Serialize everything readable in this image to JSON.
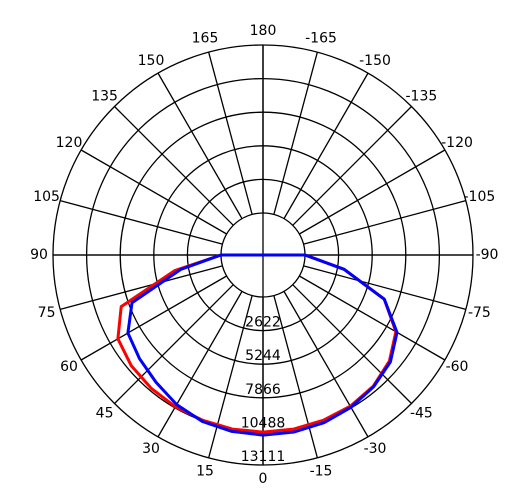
{
  "chart_data": {
    "type": "polar",
    "angle_unit": "degrees",
    "angle_labels": [
      "180",
      "165",
      "150",
      "135",
      "120",
      "105",
      "90",
      "75",
      "60",
      "45",
      "30",
      "15",
      "0",
      "-15",
      "-30",
      "-45",
      "-60",
      "-75",
      "-90",
      "-105",
      "-120",
      "-135",
      "-150",
      "-165"
    ],
    "angle_values": [
      180,
      165,
      150,
      135,
      120,
      105,
      90,
      75,
      60,
      45,
      30,
      15,
      0,
      -15,
      -30,
      -45,
      -60,
      -75,
      -90,
      -105,
      -120,
      -135,
      -150,
      -165
    ],
    "radial_labels": [
      "2622",
      "5244",
      "7866",
      "10488",
      "13111"
    ],
    "radial_values": [
      2622,
      5244,
      7866,
      10488,
      13111
    ],
    "r_max": 13111,
    "grid": true,
    "series": [
      {
        "color": "#ff0000",
        "angles": [
          -90,
          -80,
          -70,
          -60,
          -50,
          -40,
          -30,
          -20,
          -10,
          0,
          10,
          20,
          30,
          40,
          50,
          60,
          70,
          80,
          90
        ],
        "values": [
          0,
          3150,
          6800,
          8700,
          9600,
          10100,
          10350,
          10450,
          10520,
          10540,
          10520,
          10450,
          10400,
          10300,
          10150,
          9800,
          8500,
          3700,
          0
        ]
      },
      {
        "color": "#0000ff",
        "angles": [
          -90,
          -80,
          -70,
          -60,
          -50,
          -40,
          -30,
          -20,
          -10,
          0,
          10,
          20,
          30,
          40,
          50,
          60,
          70,
          80,
          90
        ],
        "values": [
          0,
          3150,
          6800,
          8800,
          9700,
          10150,
          10450,
          10650,
          10750,
          10780,
          10700,
          10550,
          10200,
          9700,
          9300,
          8900,
          7600,
          3250,
          0
        ]
      }
    ]
  }
}
